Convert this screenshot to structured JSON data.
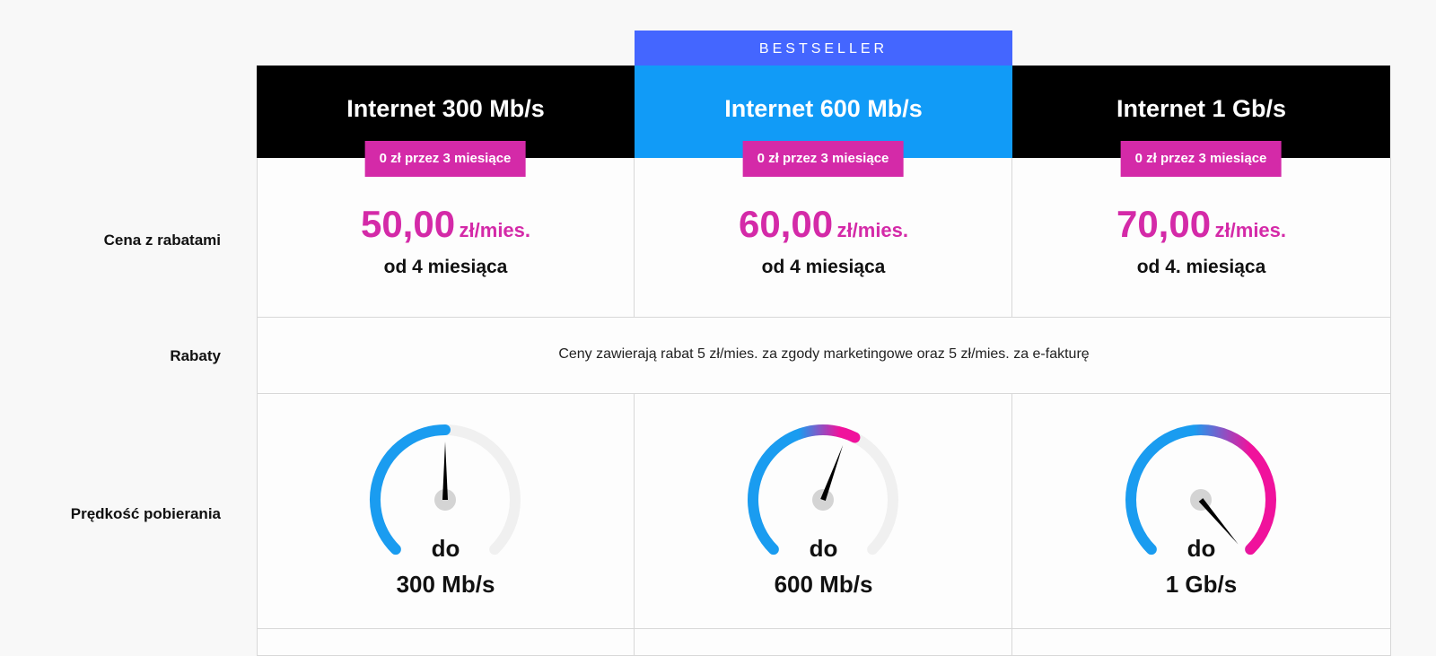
{
  "row_labels": {
    "price": "Cena z rabatami",
    "discounts": "Rabaty",
    "speed": "Prędkość pobierania"
  },
  "bestseller_label": "BESTSELLER",
  "discounts_text": "Ceny zawierają rabat 5 zł/mies. za zgody marketingowe oraz 5 zł/mies. za e-fakturę",
  "colors": {
    "header_dark": "#000000",
    "header_highlight": "#119bf7",
    "bestseller": "#4466ff",
    "accent": "#d42aa8",
    "gauge_start": "#1a9cf0",
    "gauge_end": "#f0129c",
    "gauge_track": "#f0f0f0"
  },
  "plans": [
    {
      "title": "Internet 300 Mb/s",
      "promo": "0 zł przez 3 miesiące",
      "price_main": "50,00",
      "price_unit": "zł/mies.",
      "from": "od 4 miesiąca",
      "speed_prefix": "do",
      "speed": "300 Mb/s",
      "gauge_level": 0.5
    },
    {
      "title": "Internet 600 Mb/s",
      "promo": "0 zł przez 3 miesiące",
      "price_main": "60,00",
      "price_unit": "zł/mies.",
      "from": "od 4 miesiąca",
      "speed_prefix": "do",
      "speed": "600 Mb/s",
      "gauge_level": 0.6
    },
    {
      "title": "Internet 1 Gb/s",
      "promo": "0 zł przez 3 miesiące",
      "price_main": "70,00",
      "price_unit": "zł/mies.",
      "from": "od 4. miesiąca",
      "speed_prefix": "do",
      "speed": "1 Gb/s",
      "gauge_level": 1.0
    }
  ]
}
